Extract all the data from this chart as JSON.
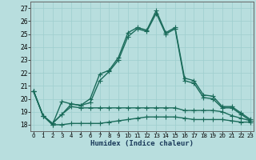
{
  "xlabel": "Humidex (Indice chaleur)",
  "xlim": [
    -0.3,
    23.3
  ],
  "ylim": [
    17.5,
    27.5
  ],
  "yticks": [
    18,
    19,
    20,
    21,
    22,
    23,
    24,
    25,
    26,
    27
  ],
  "xticks": [
    0,
    1,
    2,
    3,
    4,
    5,
    6,
    7,
    8,
    9,
    10,
    11,
    12,
    13,
    14,
    15,
    16,
    17,
    18,
    19,
    20,
    21,
    22,
    23
  ],
  "background_color": "#b8dede",
  "grid_color": "#9ecece",
  "line_color": "#1a6b5a",
  "series": [
    [
      20.6,
      18.7,
      18.0,
      19.8,
      19.6,
      19.5,
      20.0,
      21.9,
      22.2,
      23.2,
      25.1,
      25.5,
      25.3,
      26.8,
      25.1,
      25.5,
      21.6,
      21.4,
      20.3,
      20.2,
      19.4,
      19.4,
      18.9,
      18.4
    ],
    [
      20.6,
      18.7,
      18.1,
      18.8,
      19.6,
      19.5,
      19.7,
      21.4,
      22.1,
      23.0,
      24.8,
      25.4,
      25.2,
      26.6,
      25.0,
      25.4,
      21.4,
      21.2,
      20.1,
      20.0,
      19.3,
      19.3,
      18.8,
      18.3
    ],
    [
      20.6,
      18.7,
      18.1,
      18.8,
      19.4,
      19.3,
      19.3,
      19.3,
      19.3,
      19.3,
      19.3,
      19.3,
      19.3,
      19.3,
      19.3,
      19.3,
      19.1,
      19.1,
      19.1,
      19.1,
      19.0,
      18.7,
      18.5,
      18.3
    ],
    [
      20.6,
      18.7,
      18.0,
      18.0,
      18.1,
      18.1,
      18.1,
      18.1,
      18.2,
      18.3,
      18.4,
      18.5,
      18.6,
      18.6,
      18.6,
      18.6,
      18.5,
      18.4,
      18.4,
      18.4,
      18.4,
      18.3,
      18.2,
      18.2
    ]
  ],
  "marker_size": 2.5,
  "linewidth": 1.0
}
